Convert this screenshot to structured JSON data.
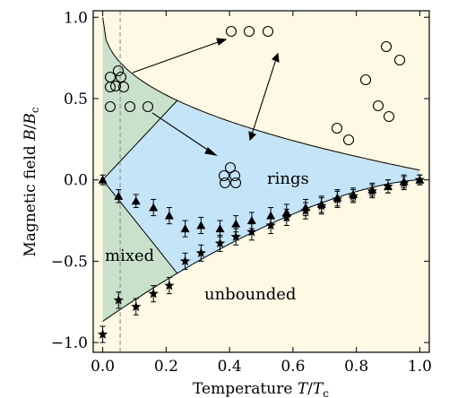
{
  "chart_data": {
    "type": "scatter",
    "xlabel": "Temperature T/Tc",
    "ylabel": "Magnetic field B/Bc",
    "xlim": [
      -0.03,
      1.03
    ],
    "ylim": [
      -1.06,
      1.04
    ],
    "x_ticks": [
      "0.0",
      "0.2",
      "0.4",
      "0.6",
      "0.8",
      "1.0"
    ],
    "x_tick_values": [
      0.0,
      0.2,
      0.4,
      0.6,
      0.8,
      1.0
    ],
    "y_ticks": [
      "1.0",
      "0.5",
      "0.0",
      "−0.5",
      "−1.0"
    ],
    "y_tick_values": [
      1.0,
      0.5,
      0.0,
      -0.5,
      -1.0
    ],
    "dashed_line_x": 0.055,
    "regions": [
      {
        "label": "rings",
        "color": "#c4e4f7"
      },
      {
        "label": "mixed",
        "color": "#c9e1cb"
      },
      {
        "label": "unbounded",
        "color": "#fdf9e4"
      }
    ],
    "series": [
      {
        "marker": "triangle",
        "points": [
          {
            "x": 0.0,
            "y": 0.0,
            "err": 0.03
          },
          {
            "x": 0.05,
            "y": -0.1,
            "err": 0.04
          },
          {
            "x": 0.105,
            "y": -0.13,
            "err": 0.04
          },
          {
            "x": 0.16,
            "y": -0.17,
            "err": 0.05
          },
          {
            "x": 0.21,
            "y": -0.22,
            "err": 0.05
          },
          {
            "x": 0.26,
            "y": -0.3,
            "err": 0.05
          },
          {
            "x": 0.31,
            "y": -0.28,
            "err": 0.05
          },
          {
            "x": 0.37,
            "y": -0.3,
            "err": 0.05
          },
          {
            "x": 0.42,
            "y": -0.27,
            "err": 0.05
          },
          {
            "x": 0.47,
            "y": -0.25,
            "err": 0.05
          },
          {
            "x": 0.53,
            "y": -0.22,
            "err": 0.05
          },
          {
            "x": 0.58,
            "y": -0.2,
            "err": 0.05
          },
          {
            "x": 0.64,
            "y": -0.17,
            "err": 0.05
          },
          {
            "x": 0.69,
            "y": -0.15,
            "err": 0.05
          },
          {
            "x": 0.74,
            "y": -0.11,
            "err": 0.05
          },
          {
            "x": 0.79,
            "y": -0.09,
            "err": 0.04
          },
          {
            "x": 0.85,
            "y": -0.06,
            "err": 0.04
          },
          {
            "x": 0.9,
            "y": -0.04,
            "err": 0.04
          },
          {
            "x": 0.95,
            "y": -0.01,
            "err": 0.04
          },
          {
            "x": 1.0,
            "y": 0.0,
            "err": 0.03
          }
        ]
      },
      {
        "marker": "star",
        "points": [
          {
            "x": 0.0,
            "y": -0.95,
            "err": 0.05
          },
          {
            "x": 0.05,
            "y": -0.74,
            "err": 0.05
          },
          {
            "x": 0.105,
            "y": -0.78,
            "err": 0.05
          },
          {
            "x": 0.16,
            "y": -0.7,
            "err": 0.05
          },
          {
            "x": 0.21,
            "y": -0.65,
            "err": 0.05
          },
          {
            "x": 0.26,
            "y": -0.5,
            "err": 0.05
          },
          {
            "x": 0.31,
            "y": -0.45,
            "err": 0.05
          },
          {
            "x": 0.37,
            "y": -0.39,
            "err": 0.05
          },
          {
            "x": 0.42,
            "y": -0.35,
            "err": 0.05
          },
          {
            "x": 0.47,
            "y": -0.32,
            "err": 0.05
          },
          {
            "x": 0.53,
            "y": -0.28,
            "err": 0.05
          },
          {
            "x": 0.58,
            "y": -0.23,
            "err": 0.05
          },
          {
            "x": 0.64,
            "y": -0.19,
            "err": 0.05
          },
          {
            "x": 0.69,
            "y": -0.16,
            "err": 0.05
          },
          {
            "x": 0.74,
            "y": -0.12,
            "err": 0.05
          },
          {
            "x": 0.79,
            "y": -0.1,
            "err": 0.04
          },
          {
            "x": 0.85,
            "y": -0.07,
            "err": 0.04
          },
          {
            "x": 0.9,
            "y": -0.04,
            "err": 0.04
          },
          {
            "x": 0.95,
            "y": -0.02,
            "err": 0.04
          },
          {
            "x": 1.0,
            "y": 0.0,
            "err": 0.03
          }
        ]
      }
    ]
  }
}
